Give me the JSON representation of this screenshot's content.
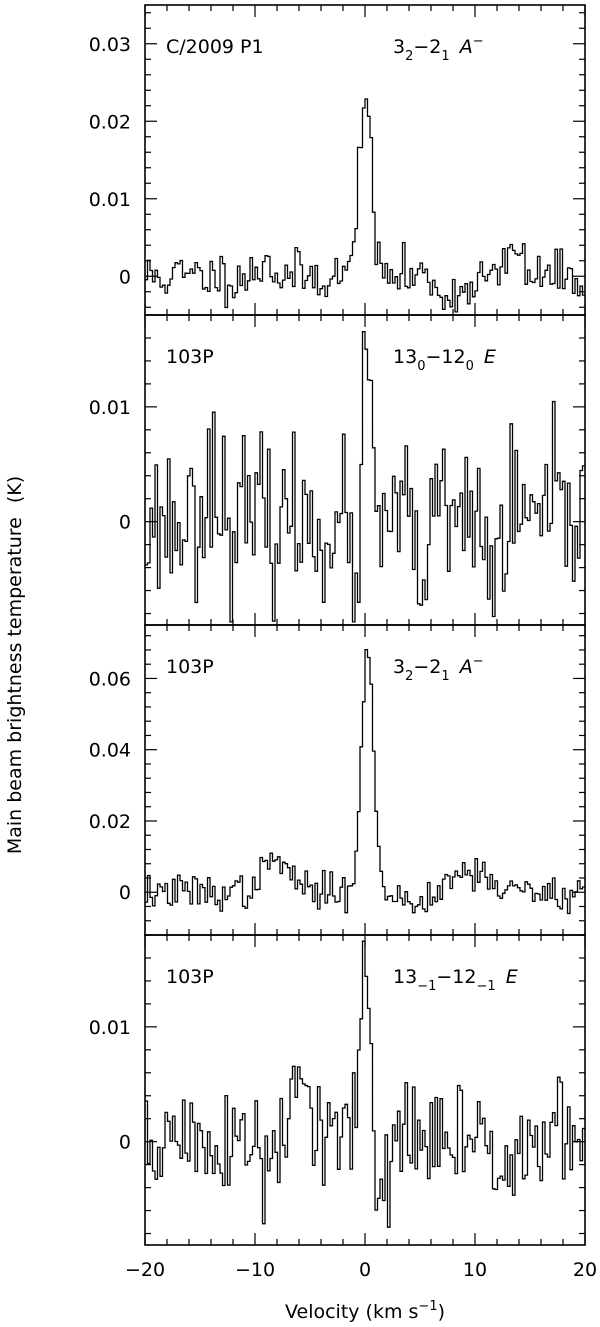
{
  "figure": {
    "ylabel": "Main beam brightness temperature",
    "ylabel_unit": "(K)",
    "xlabel_pre": "Velocity  (km s",
    "xlabel_sup": "−1",
    "xlabel_post": ")"
  },
  "chart_data": [
    {
      "type": "line",
      "object": "C/2009 P1",
      "line_main": "3",
      "line_sub1": "2",
      "line_mid": "−2",
      "line_sub2": "1",
      "line_sym": "A",
      "line_sym_sup": "−",
      "xlim": [
        -20,
        20
      ],
      "ylim": [
        -0.005,
        0.035
      ],
      "yticks": [
        0,
        0.01,
        0.02,
        0.03
      ],
      "ytick_labels": [
        "0",
        "0.01",
        "0.02",
        "0.03"
      ],
      "xticks": [
        -20,
        -10,
        0,
        10,
        20
      ],
      "noise": 0.0016,
      "features": [
        {
          "center": 0.0,
          "width": 0.55,
          "amp": 0.024
        },
        {
          "center": -19.0,
          "width": 0.5,
          "amp": 0.0
        },
        {
          "center": 13.6,
          "width": 0.5,
          "amp": 0.004
        },
        {
          "center": -9.0,
          "width": 0.4,
          "amp": 0.003
        },
        {
          "center": 8.0,
          "width": 1.0,
          "amp": -0.003
        }
      ],
      "seed": 11
    },
    {
      "type": "line",
      "object": "103P",
      "line_main": "13",
      "line_sub1": "0",
      "line_mid": "−12",
      "line_sub2": "0",
      "line_sym": "E",
      "line_sym_sup": "",
      "xlim": [
        -20,
        20
      ],
      "ylim": [
        -0.009,
        0.018
      ],
      "yticks": [
        0,
        0.01
      ],
      "ytick_labels": [
        "0",
        "0.01"
      ],
      "xticks": [
        -20,
        -10,
        0,
        10,
        20
      ],
      "noise": 0.0034,
      "features": [
        {
          "center": 0.1,
          "width": 0.35,
          "amp": 0.015
        },
        {
          "center": -14.0,
          "width": 0.6,
          "amp": 0.005
        },
        {
          "center": -1.0,
          "width": 0.5,
          "amp": -0.005
        },
        {
          "center": 5.0,
          "width": 0.6,
          "amp": -0.004
        },
        {
          "center": 11.5,
          "width": 0.6,
          "amp": -0.004
        }
      ],
      "seed": 23
    },
    {
      "type": "line",
      "object": "103P",
      "line_main": "3",
      "line_sub1": "2",
      "line_mid": "−2",
      "line_sub2": "1",
      "line_sym": "A",
      "line_sym_sup": "−",
      "xlim": [
        -20,
        20
      ],
      "ylim": [
        -0.012,
        0.075
      ],
      "yticks": [
        0,
        0.02,
        0.04,
        0.06
      ],
      "ytick_labels": [
        "0",
        "0.02",
        "0.04",
        "0.06"
      ],
      "xticks": [
        -20,
        -10,
        0,
        10,
        20
      ],
      "noise": 0.0025,
      "features": [
        {
          "center": 0.2,
          "width": 0.55,
          "amp": 0.068
        },
        {
          "center": -8.0,
          "width": 1.2,
          "amp": 0.009
        },
        {
          "center": 9.5,
          "width": 1.8,
          "amp": 0.006
        },
        {
          "center": 4.5,
          "width": 0.8,
          "amp": -0.004
        }
      ],
      "seed": 37
    },
    {
      "type": "line",
      "object": "103P",
      "line_main": "13",
      "line_sub1": "−1",
      "line_mid": "−12",
      "line_sub2": "−1",
      "line_sym": "E",
      "line_sym_sup": "",
      "xlim": [
        -20,
        20
      ],
      "ylim": [
        -0.009,
        0.018
      ],
      "yticks": [
        0,
        0.01
      ],
      "ytick_labels": [
        "0",
        "0.01"
      ],
      "xticks": [
        -20,
        -10,
        0,
        10,
        20
      ],
      "noise": 0.0026,
      "features": [
        {
          "center": 0.0,
          "width": 0.45,
          "amp": 0.016
        },
        {
          "center": -6.0,
          "width": 0.8,
          "amp": 0.005
        },
        {
          "center": -9.0,
          "width": 0.6,
          "amp": -0.004
        },
        {
          "center": 1.5,
          "width": 0.5,
          "amp": -0.005
        }
      ],
      "seed": 51
    }
  ],
  "xaxis": {
    "tick_labels": [
      "−20",
      "−10",
      "0",
      "10",
      "20"
    ]
  }
}
